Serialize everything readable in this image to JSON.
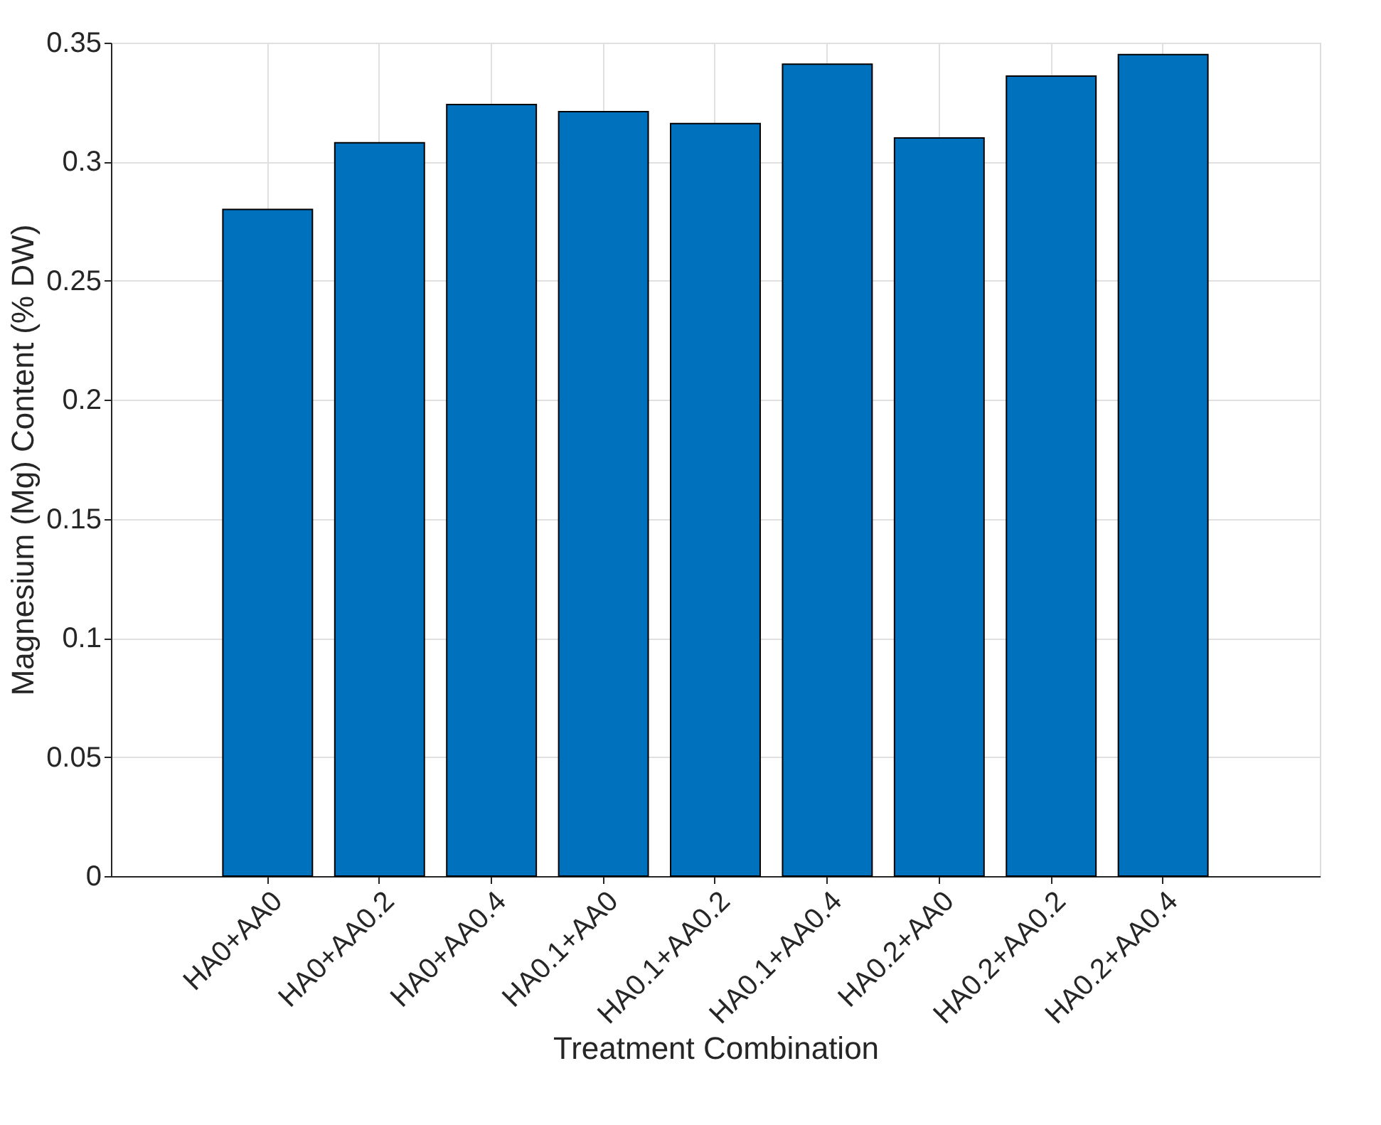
{
  "chart_data": {
    "type": "bar",
    "xlabel": "Treatment Combination",
    "ylabel": "Magnesium (Mg) Content (% DW)",
    "categories": [
      "HA0+AA0",
      "HA0+AA0.2",
      "HA0+AA0.4",
      "HA0.1+AA0",
      "HA0.1+AA0.2",
      "HA0.1+AA0.4",
      "HA0.2+AA0",
      "HA0.2+AA0.2",
      "HA0.2+AA0.4"
    ],
    "values": [
      0.28,
      0.308,
      0.324,
      0.321,
      0.316,
      0.341,
      0.31,
      0.336,
      0.345
    ],
    "color": "#0072bd",
    "ylim": [
      0,
      0.35
    ],
    "yticks": [
      0,
      0.05,
      0.1,
      0.15,
      0.2,
      0.25,
      0.3,
      0.35
    ],
    "grid": true
  }
}
